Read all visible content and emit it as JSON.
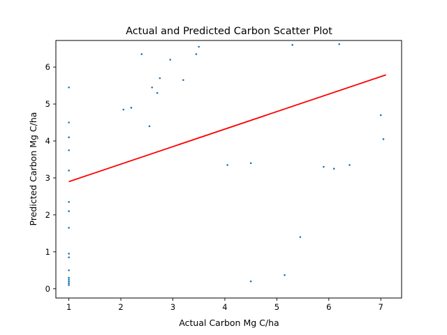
{
  "chart_data": {
    "type": "scatter",
    "title": "Actual and Predicted Carbon Scatter Plot",
    "xlabel": "Actual Carbon Mg C/ha",
    "ylabel": "Predicted Carbon Mg C/ha",
    "xlim": [
      0.75,
      7.4
    ],
    "ylim": [
      -0.25,
      6.72
    ],
    "xticks": [
      1,
      2,
      3,
      4,
      5,
      6,
      7
    ],
    "yticks": [
      0,
      1,
      2,
      3,
      4,
      5,
      6
    ],
    "grid": false,
    "point_color": "#1f77b4",
    "fit_color": "#ff0000",
    "regression_line": {
      "x": [
        1.0,
        7.1
      ],
      "y": [
        2.9,
        5.79
      ]
    },
    "series": [
      {
        "points": [
          [
            1.0,
            0.1
          ],
          [
            1.0,
            0.15
          ],
          [
            1.0,
            0.2
          ],
          [
            1.0,
            0.25
          ],
          [
            1.0,
            0.3
          ],
          [
            1.0,
            0.5
          ],
          [
            1.0,
            0.85
          ],
          [
            1.0,
            0.95
          ],
          [
            1.0,
            1.65
          ],
          [
            1.0,
            2.1
          ],
          [
            1.0,
            2.35
          ],
          [
            1.0,
            3.2
          ],
          [
            1.0,
            3.75
          ],
          [
            1.0,
            4.1
          ],
          [
            1.0,
            4.5
          ],
          [
            1.0,
            5.45
          ],
          [
            2.05,
            4.85
          ],
          [
            2.2,
            4.9
          ],
          [
            2.4,
            6.35
          ],
          [
            2.55,
            4.4
          ],
          [
            2.6,
            5.45
          ],
          [
            2.7,
            5.3
          ],
          [
            2.75,
            5.7
          ],
          [
            2.95,
            6.2
          ],
          [
            3.2,
            5.65
          ],
          [
            3.5,
            6.55
          ],
          [
            3.45,
            6.35
          ],
          [
            4.05,
            3.35
          ],
          [
            4.5,
            3.4
          ],
          [
            4.5,
            0.2
          ],
          [
            5.15,
            0.37
          ],
          [
            5.45,
            1.4
          ],
          [
            5.9,
            3.3
          ],
          [
            6.1,
            3.25
          ],
          [
            6.4,
            3.35
          ],
          [
            5.3,
            6.6
          ],
          [
            6.2,
            6.62
          ],
          [
            7.05,
            4.05
          ],
          [
            7.0,
            4.7
          ]
        ]
      }
    ]
  }
}
